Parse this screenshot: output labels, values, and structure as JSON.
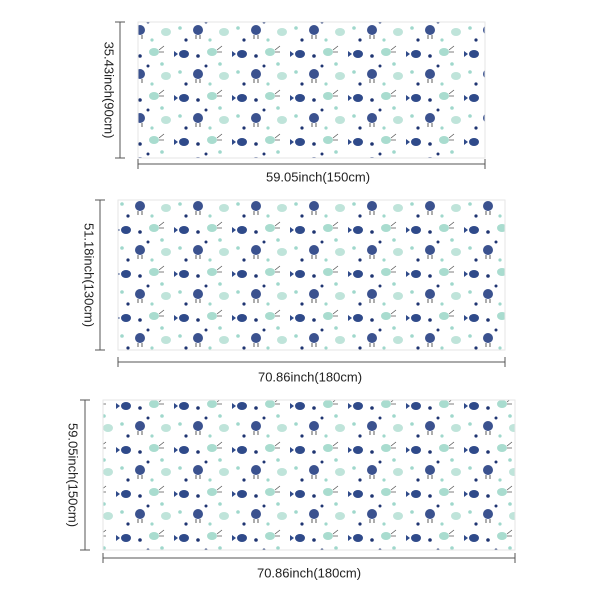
{
  "panels": [
    {
      "width_label": "59.05inch(150cm)",
      "height_label": "35.43inch(90cm)"
    },
    {
      "width_label": "70.86inch(180cm)",
      "height_label": "51.18inch(130cm)"
    },
    {
      "width_label": "70.86inch(180cm)",
      "height_label": "59.05inch(150cm)"
    }
  ]
}
